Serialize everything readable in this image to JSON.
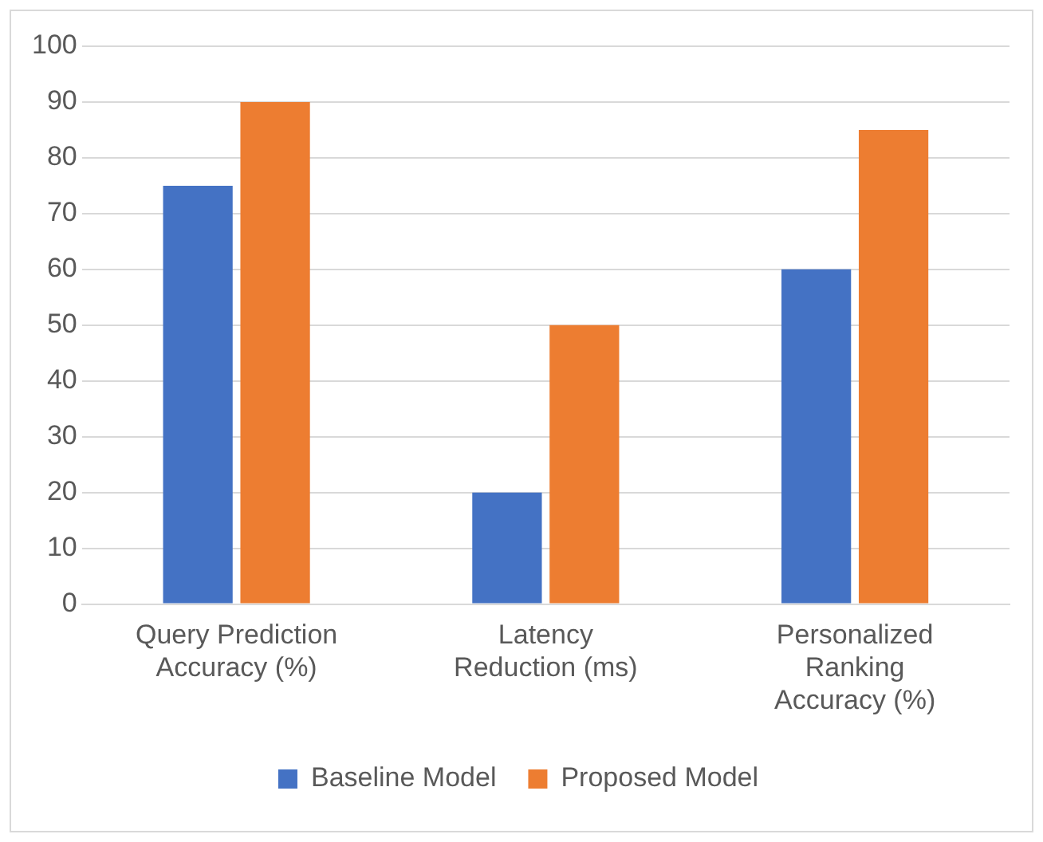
{
  "chart_data": {
    "type": "bar",
    "categories": [
      "Query Prediction Accuracy (%)",
      "Latency Reduction (ms)",
      "Personalized Ranking Accuracy (%)"
    ],
    "series": [
      {
        "name": "Baseline Model",
        "color": "#4472c4",
        "values": [
          75,
          20,
          60
        ]
      },
      {
        "name": "Proposed Model",
        "color": "#ed7d31",
        "values": [
          90,
          50,
          85
        ]
      }
    ],
    "ylim": [
      0,
      100
    ],
    "yticks": [
      0,
      10,
      20,
      30,
      40,
      50,
      60,
      70,
      80,
      90,
      100
    ],
    "grid": "y",
    "legend": "bottom"
  }
}
